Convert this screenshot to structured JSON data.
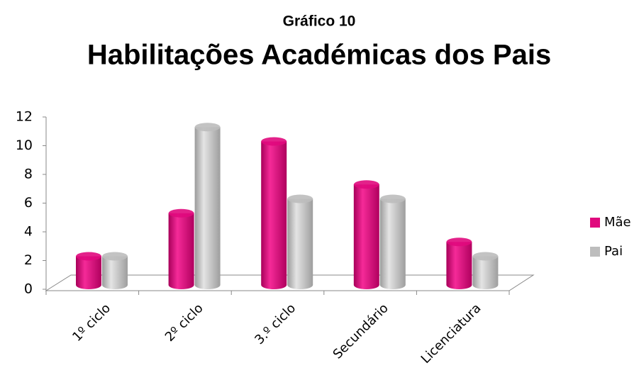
{
  "chart_data": {
    "type": "bar3d",
    "title": "Gráfico 10",
    "subtitle": "Habilitações Académicas dos Pais",
    "categories": [
      "1º  ciclo",
      "2º ciclo",
      "3.º ciclo",
      "Secundário",
      "Licenciatura"
    ],
    "series": [
      {
        "name": "Mãe",
        "color": "#e0097d",
        "values": [
          2,
          5,
          10,
          7,
          3
        ]
      },
      {
        "name": "Pai",
        "color": "#bdbdbd",
        "values": [
          2,
          11,
          6,
          6,
          2
        ]
      }
    ],
    "ylim": [
      0,
      12
    ],
    "yticks": [
      0,
      2,
      4,
      6,
      8,
      10,
      12
    ],
    "grid": false,
    "legend": "right"
  }
}
